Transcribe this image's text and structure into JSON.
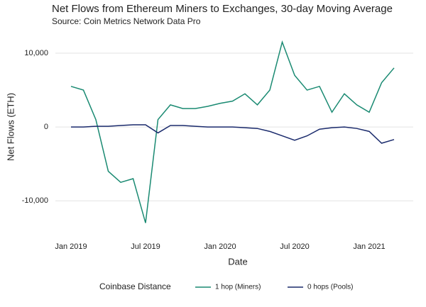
{
  "chart_data": {
    "type": "line",
    "title": "Net Flows from Ethereum Miners to Exchanges, 30-day Moving Average",
    "subtitle": "Source: Coin Metrics Network Data Pro",
    "x_label": "Date",
    "y_label": "Net Flows (ETH)",
    "legend_title": "Coinbase Distance",
    "x": [
      "Jan 2019",
      "Feb 2019",
      "Mar 2019",
      "Apr 2019",
      "May 2019",
      "Jun 2019",
      "Jul 2019",
      "Aug 2019",
      "Sep 2019",
      "Oct 2019",
      "Nov 2019",
      "Dec 2019",
      "Jan 2020",
      "Feb 2020",
      "Mar 2020",
      "Apr 2020",
      "May 2020",
      "Jun 2020",
      "Jul 2020",
      "Aug 2020",
      "Sep 2020",
      "Oct 2020",
      "Nov 2020",
      "Dec 2020",
      "Jan 2021",
      "Feb 2021",
      "Mar 2021"
    ],
    "xticks": [
      "Jan 2019",
      "Jul 2019",
      "Jan 2020",
      "Jul 2020",
      "Jan 2021"
    ],
    "series": [
      {
        "name": "1 hop (Miners)",
        "color": "#1a8a72",
        "values": [
          5500,
          5000,
          1000,
          -6000,
          -7500,
          -7000,
          -13000,
          1000,
          3000,
          2500,
          2500,
          2800,
          3200,
          3500,
          4500,
          3000,
          5000,
          11500,
          7000,
          5000,
          5500,
          2000,
          4500,
          3000,
          2000,
          6000,
          8000
        ]
      },
      {
        "name": "0 hops (Pools)",
        "color": "#1a2a6c",
        "values": [
          0,
          0,
          100,
          100,
          200,
          300,
          300,
          -800,
          200,
          200,
          100,
          0,
          0,
          0,
          -100,
          -200,
          -600,
          -1200,
          -1800,
          -1200,
          -300,
          -100,
          0,
          -200,
          -600,
          -2200,
          -1700
        ]
      }
    ],
    "ylim": [
      -14300,
      12400
    ],
    "yticks": [
      {
        "value": 10000,
        "label": "10,000"
      },
      0,
      {
        "value": -10000,
        "label": "-10,000"
      }
    ],
    "grid": true
  }
}
